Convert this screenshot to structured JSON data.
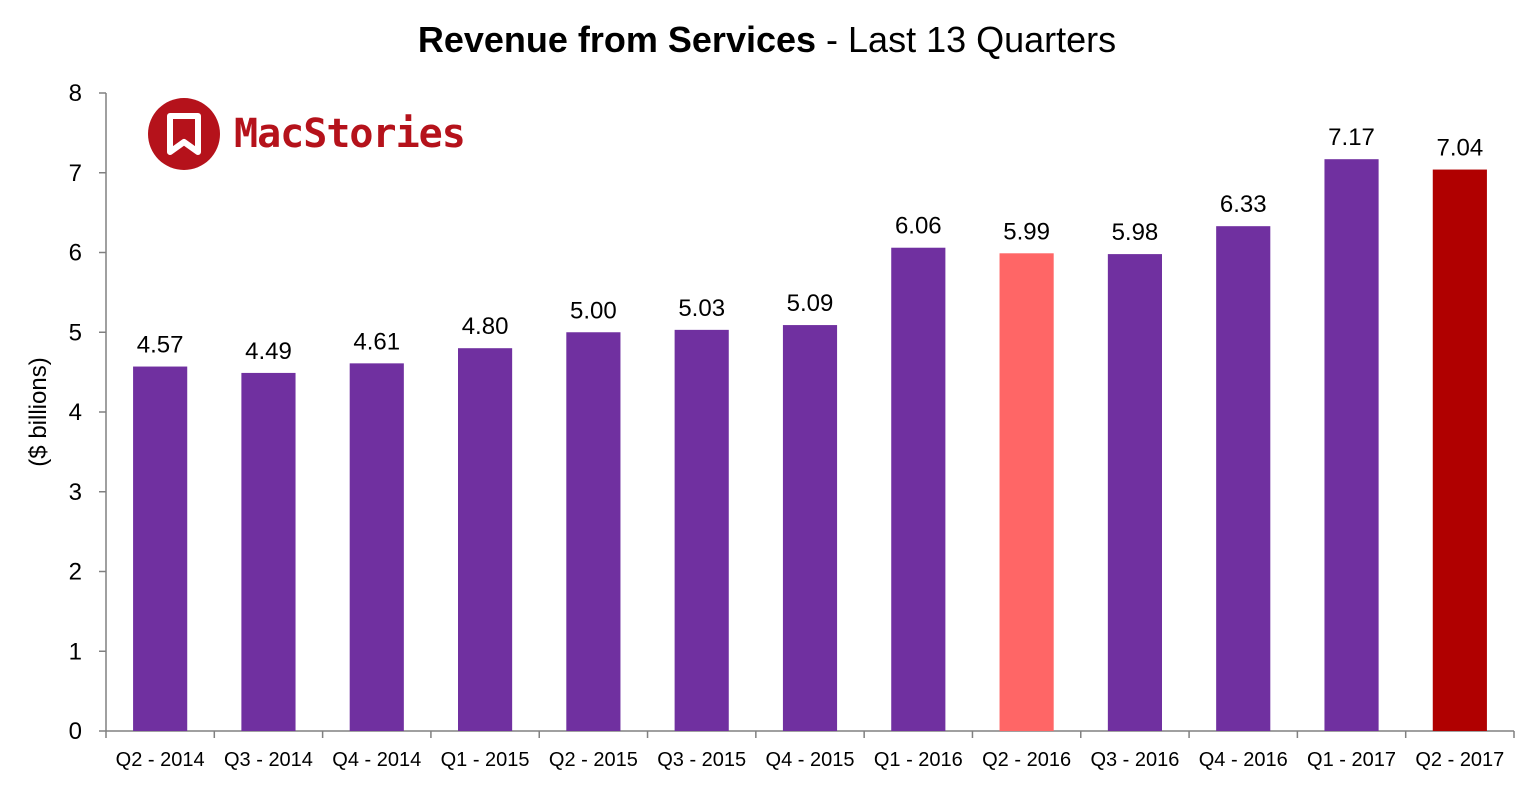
{
  "brand": {
    "name": "MacStories",
    "color": "#b5121b"
  },
  "chart_data": {
    "type": "bar",
    "title_bold": "Revenue from Services",
    "title_rest": " - Last 13 Quarters",
    "xlabel": "",
    "ylabel": "($ billions)",
    "ylim": [
      0,
      8
    ],
    "yticks": [
      0,
      1,
      2,
      3,
      4,
      5,
      6,
      7,
      8
    ],
    "grid": false,
    "categories": [
      "Q2 - 2014",
      "Q3 - 2014",
      "Q4 - 2014",
      "Q1 - 2015",
      "Q2 - 2015",
      "Q3 - 2015",
      "Q4 - 2015",
      "Q1 - 2016",
      "Q2 - 2016",
      "Q3 - 2016",
      "Q4 - 2016",
      "Q1 - 2017",
      "Q2 - 2017"
    ],
    "values": [
      4.57,
      4.49,
      4.61,
      4.8,
      5.0,
      5.03,
      5.09,
      6.06,
      5.99,
      5.98,
      6.33,
      7.17,
      7.04
    ],
    "value_labels": [
      "4.57",
      "4.49",
      "4.61",
      "4.80",
      "5.00",
      "5.03",
      "5.09",
      "6.06",
      "5.99",
      "5.98",
      "6.33",
      "7.17",
      "7.04"
    ],
    "colors": {
      "default": "#7030a0",
      "highlight_previous_year": "#ff6666",
      "highlight_current": "#b00000"
    },
    "bar_colors": [
      "#7030a0",
      "#7030a0",
      "#7030a0",
      "#7030a0",
      "#7030a0",
      "#7030a0",
      "#7030a0",
      "#7030a0",
      "#ff6666",
      "#7030a0",
      "#7030a0",
      "#7030a0",
      "#b00000"
    ]
  }
}
